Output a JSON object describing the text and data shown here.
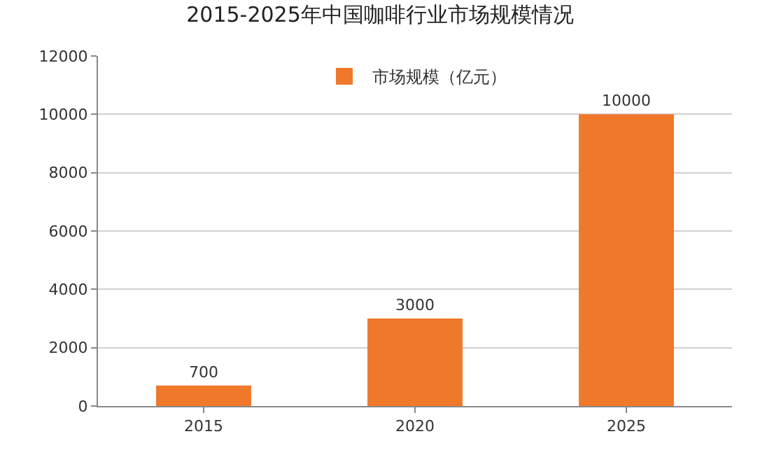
{
  "chart_data": {
    "type": "bar",
    "title": "2015-2025年中国咖啡行业市场规模情况",
    "categories": [
      "2015",
      "2020",
      "2025"
    ],
    "series": [
      {
        "name": "市场规模（亿元）",
        "color": "#f0782a",
        "values": [
          700,
          3000,
          10000
        ]
      }
    ],
    "ylim": [
      0,
      12000
    ],
    "yticks": [
      0,
      2000,
      4000,
      6000,
      8000,
      10000,
      12000
    ],
    "grid": "y",
    "legend": "top",
    "data_labels": true
  }
}
